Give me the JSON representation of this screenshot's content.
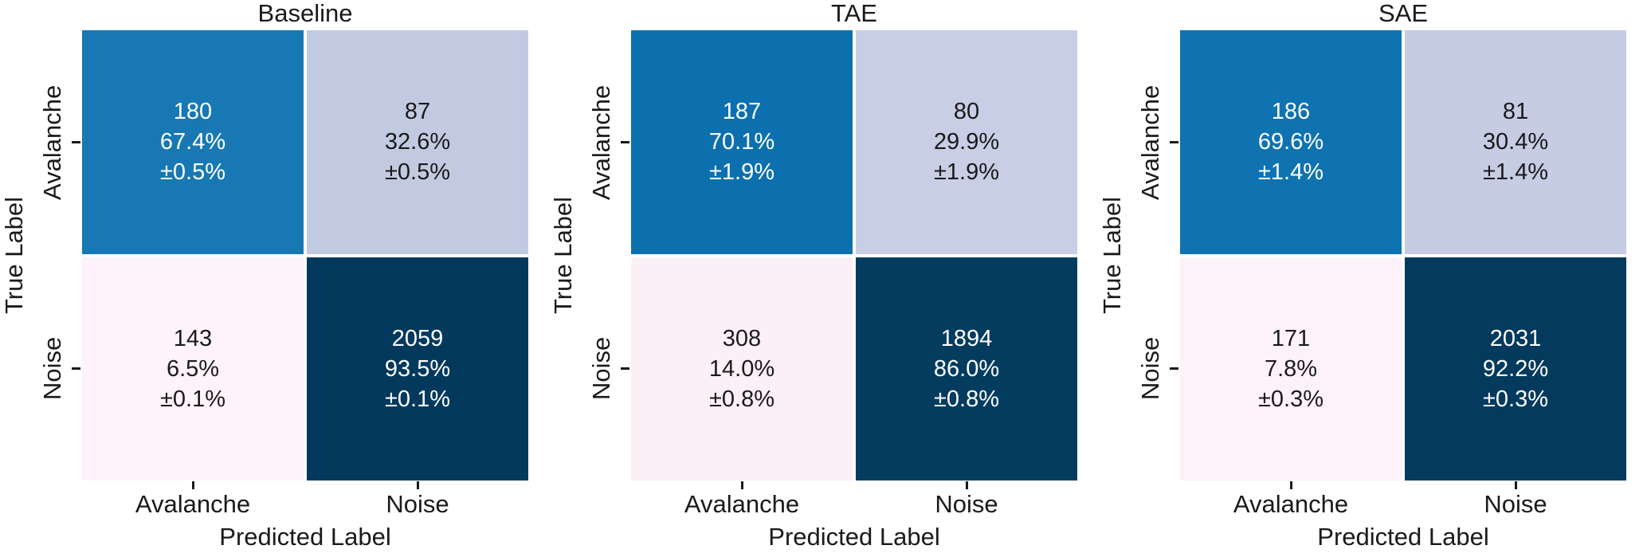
{
  "figure": {
    "background": "#ffffff",
    "text_color": "#1a1a1a"
  },
  "axes": {
    "x_label": "Predicted Label",
    "y_label": "True Label",
    "x_categories": [
      "Avalanche",
      "Noise"
    ],
    "y_categories": [
      "Avalanche",
      "Noise"
    ]
  },
  "chart_data": [
    {
      "type": "heatmap",
      "title": "Baseline",
      "xlabel": "Predicted Label",
      "ylabel": "True Label",
      "x_categories": [
        "Avalanche",
        "Noise"
      ],
      "y_categories": [
        "Avalanche",
        "Noise"
      ],
      "counts": [
        [
          180,
          87
        ],
        [
          143,
          2059
        ]
      ],
      "row_percent": [
        [
          67.4,
          32.6
        ],
        [
          6.5,
          93.5
        ]
      ],
      "row_percent_std": [
        [
          0.5,
          0.5
        ],
        [
          0.1,
          0.1
        ]
      ],
      "cell_colors": [
        [
          "#1878b4",
          "#c2cae2"
        ],
        [
          "#fdf3f9",
          "#03395c"
        ]
      ],
      "legend": "none",
      "grid": false
    },
    {
      "type": "heatmap",
      "title": "TAE",
      "xlabel": "Predicted Label",
      "ylabel": "True Label",
      "x_categories": [
        "Avalanche",
        "Noise"
      ],
      "y_categories": [
        "Avalanche",
        "Noise"
      ],
      "counts": [
        [
          187,
          80
        ],
        [
          308,
          1894
        ]
      ],
      "row_percent": [
        [
          70.1,
          29.9
        ],
        [
          14.0,
          86.0
        ]
      ],
      "row_percent_std": [
        [
          1.9,
          1.9
        ],
        [
          0.8,
          0.8
        ]
      ],
      "cell_colors": [
        [
          "#0c70af",
          "#c7cee5"
        ],
        [
          "#fcf0f7",
          "#043c60"
        ]
      ],
      "legend": "none",
      "grid": false
    },
    {
      "type": "heatmap",
      "title": "SAE",
      "xlabel": "Predicted Label",
      "ylabel": "True Label",
      "x_categories": [
        "Avalanche",
        "Noise"
      ],
      "y_categories": [
        "Avalanche",
        "Noise"
      ],
      "counts": [
        [
          186,
          81
        ],
        [
          171,
          2031
        ]
      ],
      "row_percent": [
        [
          69.6,
          30.4
        ],
        [
          7.8,
          92.2
        ]
      ],
      "row_percent_std": [
        [
          1.4,
          1.4
        ],
        [
          0.3,
          0.3
        ]
      ],
      "cell_colors": [
        [
          "#0f72b1",
          "#c5cce4"
        ],
        [
          "#fdf2f9",
          "#033a5e"
        ]
      ],
      "legend": "none",
      "grid": false
    }
  ],
  "panels": [
    {
      "title": "Baseline",
      "cells": [
        {
          "count": "180",
          "percent": "67.4%",
          "error": "±0.5%",
          "bg": "#1878b4",
          "fg": "#ffffff"
        },
        {
          "count": "87",
          "percent": "32.6%",
          "error": "±0.5%",
          "bg": "#c2cae2",
          "fg": "#1a1a1a"
        },
        {
          "count": "143",
          "percent": "6.5%",
          "error": "±0.1%",
          "bg": "#fdf3f9",
          "fg": "#1a1a1a"
        },
        {
          "count": "2059",
          "percent": "93.5%",
          "error": "±0.1%",
          "bg": "#03395c",
          "fg": "#ffffff"
        }
      ]
    },
    {
      "title": "TAE",
      "cells": [
        {
          "count": "187",
          "percent": "70.1%",
          "error": "±1.9%",
          "bg": "#0c70af",
          "fg": "#ffffff"
        },
        {
          "count": "80",
          "percent": "29.9%",
          "error": "±1.9%",
          "bg": "#c7cee5",
          "fg": "#1a1a1a"
        },
        {
          "count": "308",
          "percent": "14.0%",
          "error": "±0.8%",
          "bg": "#fcf0f7",
          "fg": "#1a1a1a"
        },
        {
          "count": "1894",
          "percent": "86.0%",
          "error": "±0.8%",
          "bg": "#043c60",
          "fg": "#ffffff"
        }
      ]
    },
    {
      "title": "SAE",
      "cells": [
        {
          "count": "186",
          "percent": "69.6%",
          "error": "±1.4%",
          "bg": "#0f72b1",
          "fg": "#ffffff"
        },
        {
          "count": "81",
          "percent": "30.4%",
          "error": "±1.4%",
          "bg": "#c5cce4",
          "fg": "#1a1a1a"
        },
        {
          "count": "171",
          "percent": "7.8%",
          "error": "±0.3%",
          "bg": "#fdf2f9",
          "fg": "#1a1a1a"
        },
        {
          "count": "2031",
          "percent": "92.2%",
          "error": "±0.3%",
          "bg": "#033a5e",
          "fg": "#ffffff"
        }
      ]
    }
  ]
}
